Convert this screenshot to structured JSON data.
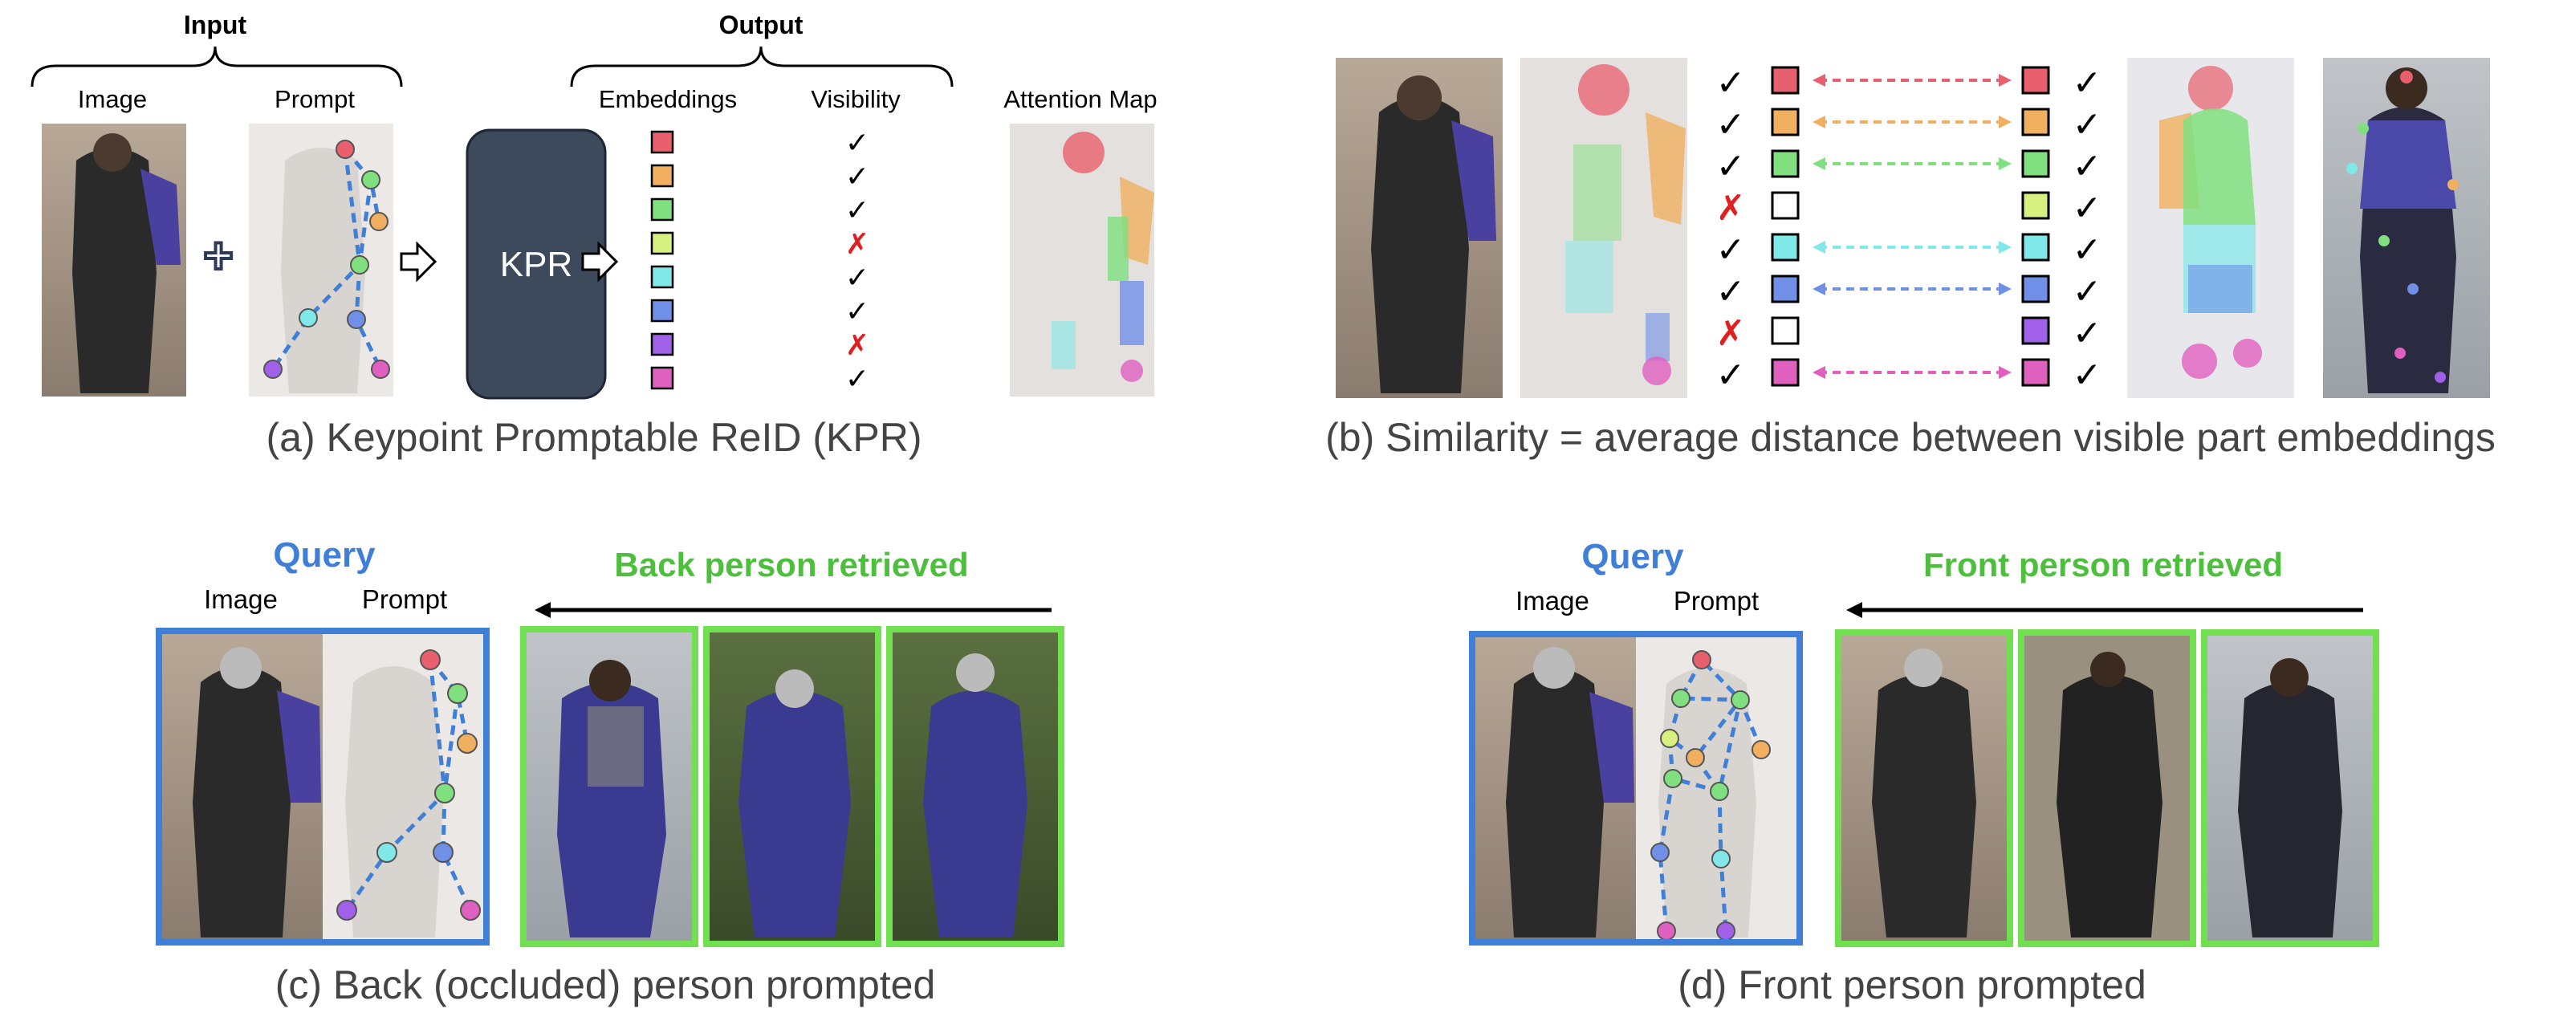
{
  "panel_a": {
    "input_label": "Input",
    "output_label": "Output",
    "image_label": "Image",
    "prompt_label": "Prompt",
    "embeddings_label": "Embeddings",
    "visibility_label": "Visibility",
    "attention_label": "Attention Map",
    "kpr_label": "KPR",
    "caption": "(a) Keypoint Promptable ReID (KPR)",
    "visibility": [
      "✓",
      "✓",
      "✓",
      "✗",
      "✓",
      "✓",
      "✗",
      "✓"
    ]
  },
  "panel_b": {
    "caption": "(b) Similarity = average distance between visible part embeddings",
    "left_visibility": [
      "✓",
      "✓",
      "✓",
      "✗",
      "✓",
      "✓",
      "✗",
      "✓"
    ],
    "right_visibility": [
      "✓",
      "✓",
      "✓",
      "✓",
      "✓",
      "✓",
      "✓",
      "✓"
    ]
  },
  "panel_c": {
    "query_label": "Query",
    "image_label": "Image",
    "prompt_label": "Prompt",
    "retrieved_label": "Back person retrieved",
    "caption": "(c) Back (occluded) person prompted"
  },
  "panel_d": {
    "query_label": "Query",
    "image_label": "Image",
    "prompt_label": "Prompt",
    "retrieved_label": "Front person retrieved",
    "caption": "(d) Front person prompted"
  },
  "colors": {
    "parts": [
      "#e8606e",
      "#f0b060",
      "#80e080",
      "#d8f080",
      "#80e8e8",
      "#7090e8",
      "#a060e8",
      "#e060c0"
    ],
    "query_border": "#3f7fd8",
    "retrieved_border": "#70e050",
    "query_text": "#3f7fd8",
    "retrieved_text": "#4cbf3c",
    "kpr_box": "#3d4a5c",
    "cross": "#e02020"
  }
}
